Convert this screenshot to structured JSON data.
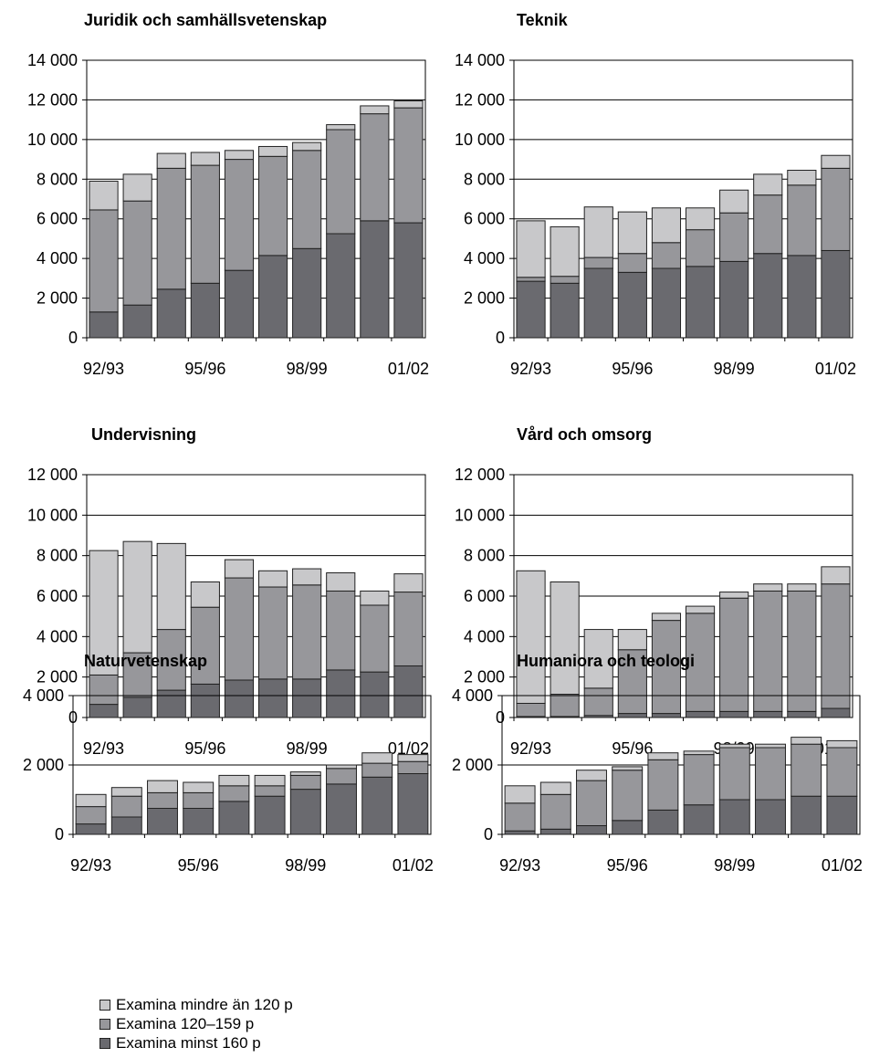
{
  "colors": {
    "series_lt120": "#c8c8ca",
    "series_120_159": "#97979b",
    "series_min160": "#6a6a6f"
  },
  "legend": {
    "items": [
      {
        "label": "Examina mindre än 120 p",
        "color": "#c8c8ca"
      },
      {
        "label": "Examina 120–159 p",
        "color": "#97979b"
      },
      {
        "label": "Examina minst 160 p",
        "color": "#6a6a6f"
      }
    ]
  },
  "chart_data": [
    {
      "type": "bar",
      "stacked": true,
      "title": "Juridik och samhällsvetenskap",
      "categories": [
        "92/93",
        "93/94",
        "94/95",
        "95/96",
        "96/97",
        "97/98",
        "98/99",
        "99/00",
        "00/01",
        "01/02"
      ],
      "tick_labels": [
        "92/93",
        "95/96",
        "98/99",
        "01/02"
      ],
      "ylim": [
        0,
        14000
      ],
      "yticks": [
        0,
        2000,
        4000,
        6000,
        8000,
        10000,
        12000,
        14000
      ],
      "ytick_labels": [
        "0",
        "2 000",
        "4 000",
        "6 000",
        "8 000",
        "10 000",
        "12 000",
        "14 000"
      ],
      "series": [
        {
          "name": "Examina minst 160 p",
          "values": [
            1300,
            1650,
            2450,
            2750,
            3400,
            4150,
            4500,
            5250,
            5900,
            5800
          ]
        },
        {
          "name": "Examina 120–159 p",
          "values": [
            5150,
            5250,
            6100,
            5950,
            5600,
            5000,
            4950,
            5250,
            5400,
            5800
          ]
        },
        {
          "name": "Examina mindre än 120 p",
          "values": [
            1450,
            1350,
            750,
            650,
            450,
            500,
            400,
            250,
            400,
            350
          ]
        }
      ]
    },
    {
      "type": "bar",
      "stacked": true,
      "title": "Teknik",
      "categories": [
        "92/93",
        "93/94",
        "94/95",
        "95/96",
        "96/97",
        "97/98",
        "98/99",
        "99/00",
        "00/01",
        "01/02"
      ],
      "tick_labels": [
        "92/93",
        "95/96",
        "98/99",
        "01/02"
      ],
      "ylim": [
        0,
        14000
      ],
      "yticks": [
        0,
        2000,
        4000,
        6000,
        8000,
        10000,
        12000,
        14000
      ],
      "ytick_labels": [
        "0",
        "2 000",
        "4 000",
        "6 000",
        "8 000",
        "10 000",
        "12 000",
        "14 000"
      ],
      "series": [
        {
          "name": "Examina minst 160 p",
          "values": [
            2850,
            2750,
            3500,
            3300,
            3500,
            3600,
            3850,
            4250,
            4150,
            4400
          ]
        },
        {
          "name": "Examina 120–159 p",
          "values": [
            200,
            350,
            550,
            950,
            1300,
            1850,
            2450,
            2950,
            3550,
            4150
          ]
        },
        {
          "name": "Examina mindre än 120 p",
          "values": [
            2850,
            2500,
            2550,
            2100,
            1750,
            1100,
            1150,
            1050,
            750,
            650
          ]
        }
      ]
    },
    {
      "type": "bar",
      "stacked": true,
      "title": "Undervisning",
      "categories": [
        "92/93",
        "93/94",
        "94/95",
        "95/96",
        "96/97",
        "97/98",
        "98/99",
        "99/00",
        "00/01",
        "01/02"
      ],
      "tick_labels": [
        "92/93",
        "95/96",
        "98/99",
        "01/02"
      ],
      "ylim": [
        0,
        12000
      ],
      "yticks": [
        0,
        2000,
        4000,
        6000,
        8000,
        10000,
        12000
      ],
      "ytick_labels": [
        "0",
        "2 000",
        "4 000",
        "6 000",
        "8 000",
        "10 000",
        "12 000"
      ],
      "series": [
        {
          "name": "Examina minst 160 p",
          "values": [
            650,
            1000,
            1350,
            1650,
            1850,
            1900,
            1900,
            2350,
            2250,
            2550
          ]
        },
        {
          "name": "Examina 120–159 p",
          "values": [
            1450,
            2200,
            3000,
            3800,
            5050,
            4550,
            4650,
            3900,
            3300,
            3650
          ]
        },
        {
          "name": "Examina mindre än 120 p",
          "values": [
            6150,
            5500,
            4250,
            1250,
            900,
            800,
            800,
            900,
            700,
            900
          ]
        }
      ]
    },
    {
      "type": "bar",
      "stacked": true,
      "title": "Vård och omsorg",
      "categories": [
        "92/93",
        "93/94",
        "94/95",
        "95/96",
        "96/97",
        "97/98",
        "98/99",
        "99/00",
        "00/01",
        "01/02"
      ],
      "tick_labels": [
        "92/93",
        "95/96",
        "98/99",
        "01/02"
      ],
      "ylim": [
        0,
        12000
      ],
      "yticks": [
        0,
        2000,
        4000,
        6000,
        8000,
        10000,
        12000
      ],
      "ytick_labels": [
        "0",
        "2 000",
        "4 000",
        "6 000",
        "8 000",
        "10 000",
        "12 000"
      ],
      "series": [
        {
          "name": "Examina minst 160 p",
          "values": [
            50,
            50,
            100,
            200,
            200,
            300,
            300,
            300,
            300,
            450
          ]
        },
        {
          "name": "Examina 120–159 p",
          "values": [
            650,
            1100,
            1350,
            3150,
            4600,
            4850,
            5600,
            5950,
            5950,
            6150
          ]
        },
        {
          "name": "Examina mindre än 120 p",
          "values": [
            6550,
            5550,
            2900,
            1000,
            350,
            350,
            300,
            350,
            350,
            850
          ]
        }
      ]
    },
    {
      "type": "bar",
      "stacked": true,
      "title": "Naturvetenskap",
      "categories": [
        "92/93",
        "93/94",
        "94/95",
        "95/96",
        "96/97",
        "97/98",
        "98/99",
        "99/00",
        "00/01",
        "01/02"
      ],
      "tick_labels": [
        "92/93",
        "95/96",
        "98/99",
        "01/02"
      ],
      "ylim": [
        0,
        4000
      ],
      "yticks": [
        0,
        2000,
        4000
      ],
      "ytick_labels": [
        "0",
        "2 000",
        "4 000"
      ],
      "series": [
        {
          "name": "Examina minst 160 p",
          "values": [
            300,
            500,
            750,
            750,
            950,
            1100,
            1300,
            1450,
            1650,
            1750
          ]
        },
        {
          "name": "Examina 120–159 p",
          "values": [
            500,
            600,
            450,
            450,
            450,
            300,
            400,
            450,
            400,
            350
          ]
        },
        {
          "name": "Examina mindre än 120 p",
          "values": [
            350,
            250,
            350,
            300,
            300,
            300,
            100,
            100,
            300,
            200
          ]
        }
      ]
    },
    {
      "type": "bar",
      "stacked": true,
      "title": "Humaniora och teologi",
      "categories": [
        "92/93",
        "93/94",
        "94/95",
        "95/96",
        "96/97",
        "97/98",
        "98/99",
        "99/00",
        "00/01",
        "01/02"
      ],
      "tick_labels": [
        "92/93",
        "95/96",
        "98/99",
        "01/02"
      ],
      "ylim": [
        0,
        4000
      ],
      "yticks": [
        0,
        2000,
        4000
      ],
      "ytick_labels": [
        "0",
        "2 000",
        "4 000"
      ],
      "series": [
        {
          "name": "Examina minst 160 p",
          "values": [
            100,
            150,
            250,
            400,
            700,
            850,
            1000,
            1000,
            1100,
            1100
          ]
        },
        {
          "name": "Examina 120–159 p",
          "values": [
            800,
            1000,
            1300,
            1450,
            1450,
            1450,
            1500,
            1500,
            1500,
            1400
          ]
        },
        {
          "name": "Examina mindre än 120 p",
          "values": [
            500,
            350,
            300,
            100,
            200,
            100,
            100,
            100,
            200,
            200
          ]
        }
      ]
    }
  ]
}
